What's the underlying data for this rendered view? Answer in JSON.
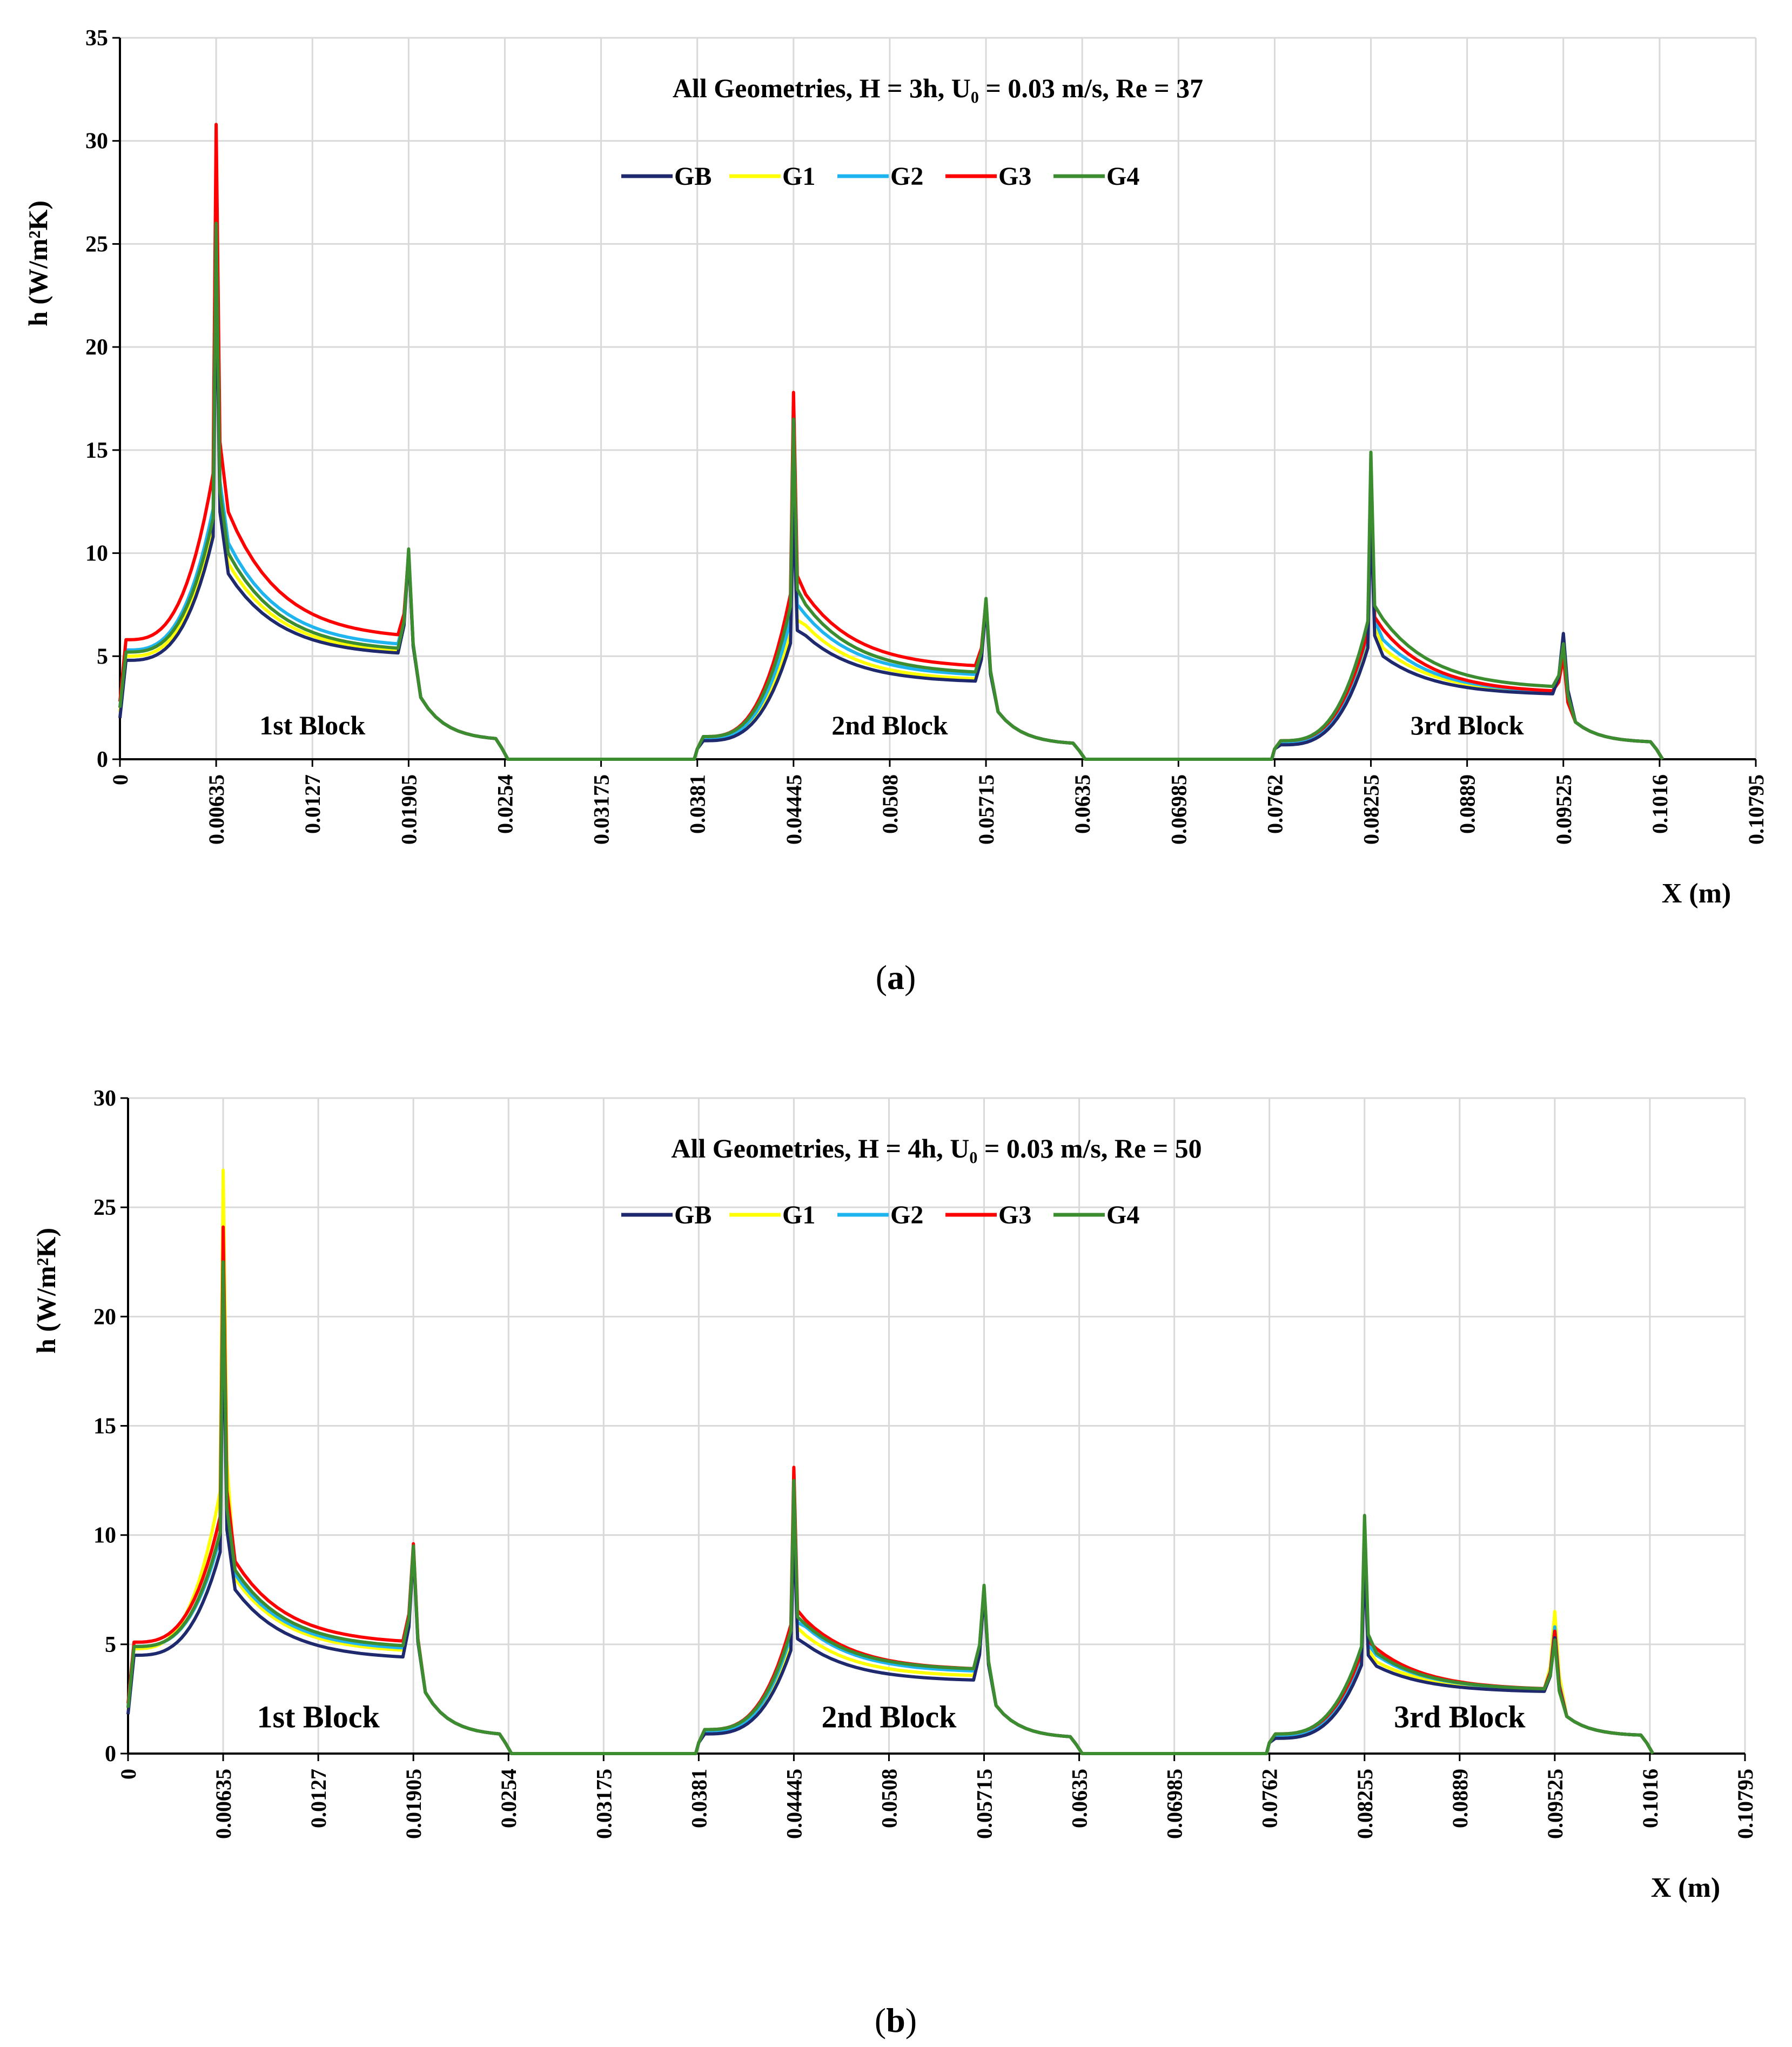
{
  "figure": {
    "panel_a_caption": "a",
    "panel_b_caption": "b"
  },
  "colors": {
    "GB": "#1f2a6e",
    "G1": "#ffff00",
    "G2": "#1eb4f0",
    "G3": "#ff0000",
    "G4": "#3c8c30",
    "grid": "#d9d9d9",
    "axis": "#000000"
  },
  "chart_data": [
    {
      "type": "line",
      "panel": "a",
      "title": "All Geometries, H = 3h, U₀ = 0.03 m/s, Re = 37",
      "xlabel": "X (m)",
      "ylabel": "h (W/m²K)",
      "xlim": [
        0,
        0.10795
      ],
      "ylim": [
        0,
        35
      ],
      "yticks": [
        "0",
        "5",
        "10",
        "15",
        "20",
        "25",
        "30",
        "35"
      ],
      "xticks": [
        "0",
        "0.00635",
        "0.0127",
        "0.01905",
        "0.0254",
        "0.03175",
        "0.0381",
        "0.04445",
        "0.0508",
        "0.05715",
        "0.0635",
        "0.06985",
        "0.0762",
        "0.08255",
        "0.0889",
        "0.09525",
        "0.1016",
        "0.10795"
      ],
      "legend": "top-center",
      "annotations": [
        {
          "text": "1st Block",
          "x": 0.0127,
          "y": 1.2
        },
        {
          "text": "2nd Block",
          "x": 0.0508,
          "y": 1.2
        },
        {
          "text": "3rd Block",
          "x": 0.0889,
          "y": 1.2
        }
      ],
      "blocks": [
        {
          "start": 0.0,
          "peak1": 0.00635,
          "peak2": 0.01905,
          "end": 0.0254
        },
        {
          "start": 0.0381,
          "peak1": 0.04445,
          "peak2": 0.05715,
          "end": 0.0635
        },
        {
          "start": 0.0762,
          "peak1": 0.08255,
          "peak2": 0.09525,
          "end": 0.1016
        }
      ],
      "series": [
        {
          "name": "GB",
          "blocks": [
            {
              "base": 2.0,
              "pre": 4.8,
              "peak1": 24.0,
              "post": 9.0,
              "trough": 5.0,
              "peak2": 10.0,
              "after": 3.0,
              "tail": 0.9
            },
            {
              "base": 0.5,
              "pre": 0.9,
              "peak1": 12.5,
              "post": 6.0,
              "trough": 3.7,
              "peak2": 7.5,
              "after": 2.3,
              "tail": 0.7
            },
            {
              "base": 0.5,
              "pre": 0.7,
              "peak1": 12.0,
              "post": 5.0,
              "trough": 3.1,
              "peak2": 6.1,
              "after": 1.8,
              "tail": 0.8
            }
          ]
        },
        {
          "name": "G1",
          "blocks": [
            {
              "base": 2.3,
              "pre": 5.0,
              "peak1": 25.0,
              "post": 9.5,
              "trough": 5.1,
              "peak2": 10.0,
              "after": 3.0,
              "tail": 0.9
            },
            {
              "base": 0.5,
              "pre": 1.0,
              "peak1": 13.5,
              "post": 6.5,
              "trough": 3.8,
              "peak2": 7.6,
              "after": 2.3,
              "tail": 0.7
            },
            {
              "base": 0.5,
              "pre": 0.8,
              "peak1": 13.0,
              "post": 5.4,
              "trough": 3.2,
              "peak2": 5.8,
              "after": 1.8,
              "tail": 0.8
            }
          ]
        },
        {
          "name": "G2",
          "blocks": [
            {
              "base": 2.5,
              "pre": 5.3,
              "peak1": 27.0,
              "post": 10.5,
              "trough": 5.4,
              "peak2": 10.0,
              "after": 3.0,
              "tail": 0.9
            },
            {
              "base": 0.5,
              "pre": 1.0,
              "peak1": 15.0,
              "post": 7.0,
              "trough": 4.0,
              "peak2": 7.6,
              "after": 2.3,
              "tail": 0.7
            },
            {
              "base": 0.5,
              "pre": 0.8,
              "peak1": 13.5,
              "post": 5.8,
              "trough": 3.2,
              "peak2": 5.9,
              "after": 1.8,
              "tail": 0.8
            }
          ]
        },
        {
          "name": "G3",
          "blocks": [
            {
              "base": 2.8,
              "pre": 5.8,
              "peak1": 30.8,
              "post": 12.0,
              "trough": 5.8,
              "peak2": 10.0,
              "after": 3.0,
              "tail": 0.9
            },
            {
              "base": 0.5,
              "pre": 1.1,
              "peak1": 17.8,
              "post": 8.0,
              "trough": 4.4,
              "peak2": 7.7,
              "after": 2.3,
              "tail": 0.7
            },
            {
              "base": 0.5,
              "pre": 0.9,
              "peak1": 13.8,
              "post": 6.3,
              "trough": 3.2,
              "peak2": 5.0,
              "after": 1.8,
              "tail": 0.8
            }
          ]
        },
        {
          "name": "G4",
          "blocks": [
            {
              "base": 2.5,
              "pre": 5.2,
              "peak1": 26.0,
              "post": 10.0,
              "trough": 5.2,
              "peak2": 10.2,
              "after": 3.0,
              "tail": 0.9
            },
            {
              "base": 0.5,
              "pre": 1.1,
              "peak1": 16.5,
              "post": 7.5,
              "trough": 4.1,
              "peak2": 7.8,
              "after": 2.3,
              "tail": 0.7
            },
            {
              "base": 0.5,
              "pre": 0.9,
              "peak1": 14.9,
              "post": 6.8,
              "trough": 3.4,
              "peak2": 5.6,
              "after": 1.8,
              "tail": 0.8
            }
          ]
        }
      ]
    },
    {
      "type": "line",
      "panel": "b",
      "title": "All Geometries, H = 4h, U₀ = 0.03 m/s, Re = 50",
      "xlabel": "X (m)",
      "ylabel": "h (W/m²K)",
      "xlim": [
        0,
        0.10795
      ],
      "ylim": [
        0,
        30
      ],
      "yticks": [
        "0",
        "5",
        "10",
        "15",
        "20",
        "25",
        "30"
      ],
      "xticks": [
        "0",
        "0.00635",
        "0.0127",
        "0.01905",
        "0.0254",
        "0.03175",
        "0.0381",
        "0.04445",
        "0.0508",
        "0.05715",
        "0.0635",
        "0.06985",
        "0.0762",
        "0.08255",
        "0.0889",
        "0.09525",
        "0.1016",
        "0.10795"
      ],
      "legend": "top-center",
      "annotations": [
        {
          "text": "1st Block",
          "x": 0.0127,
          "y": 1.2
        },
        {
          "text": "2nd Block",
          "x": 0.0508,
          "y": 1.2
        },
        {
          "text": "3rd Block",
          "x": 0.0889,
          "y": 1.2
        }
      ],
      "blocks": [
        {
          "start": 0.0,
          "peak1": 0.00635,
          "peak2": 0.01905,
          "end": 0.0254
        },
        {
          "start": 0.0381,
          "peak1": 0.04445,
          "peak2": 0.05715,
          "end": 0.0635
        },
        {
          "start": 0.0762,
          "peak1": 0.08255,
          "peak2": 0.09525,
          "end": 0.1016
        }
      ],
      "series": [
        {
          "name": "GB",
          "blocks": [
            {
              "base": 1.8,
              "pre": 4.5,
              "peak1": 20.5,
              "post": 7.5,
              "trough": 4.3,
              "peak2": 9.3,
              "after": 2.8,
              "tail": 0.8
            },
            {
              "base": 0.5,
              "pre": 0.9,
              "peak1": 10.5,
              "post": 5.0,
              "trough": 3.3,
              "peak2": 7.4,
              "after": 2.2,
              "tail": 0.7
            },
            {
              "base": 0.5,
              "pre": 0.7,
              "peak1": 9.0,
              "post": 4.0,
              "trough": 2.8,
              "peak2": 5.3,
              "after": 1.7,
              "tail": 0.8
            }
          ]
        },
        {
          "name": "G1",
          "blocks": [
            {
              "base": 2.0,
              "pre": 4.8,
              "peak1": 26.7,
              "post": 8.0,
              "trough": 4.6,
              "peak2": 9.4,
              "after": 2.8,
              "tail": 0.8
            },
            {
              "base": 0.5,
              "pre": 1.0,
              "peak1": 11.5,
              "post": 5.4,
              "trough": 3.5,
              "peak2": 7.5,
              "after": 2.2,
              "tail": 0.7
            },
            {
              "base": 0.5,
              "pre": 0.8,
              "peak1": 9.5,
              "post": 4.2,
              "trough": 2.9,
              "peak2": 6.5,
              "after": 1.7,
              "tail": 0.8
            }
          ]
        },
        {
          "name": "G2",
          "blocks": [
            {
              "base": 2.1,
              "pre": 4.9,
              "peak1": 22.0,
              "post": 8.2,
              "trough": 4.7,
              "peak2": 9.4,
              "after": 2.8,
              "tail": 0.8
            },
            {
              "base": 0.5,
              "pre": 1.0,
              "peak1": 12.0,
              "post": 5.8,
              "trough": 3.7,
              "peak2": 7.5,
              "after": 2.2,
              "tail": 0.7
            },
            {
              "base": 0.5,
              "pre": 0.8,
              "peak1": 10.0,
              "post": 4.5,
              "trough": 2.9,
              "peak2": 5.8,
              "after": 1.7,
              "tail": 0.8
            }
          ]
        },
        {
          "name": "G3",
          "blocks": [
            {
              "base": 2.3,
              "pre": 5.1,
              "peak1": 24.1,
              "post": 8.8,
              "trough": 5.0,
              "peak2": 9.6,
              "after": 2.8,
              "tail": 0.8
            },
            {
              "base": 0.5,
              "pre": 1.1,
              "peak1": 13.1,
              "post": 6.1,
              "trough": 3.8,
              "peak2": 7.6,
              "after": 2.2,
              "tail": 0.7
            },
            {
              "base": 0.5,
              "pre": 0.9,
              "peak1": 10.3,
              "post": 4.8,
              "trough": 2.9,
              "peak2": 5.6,
              "after": 1.7,
              "tail": 0.8
            }
          ]
        },
        {
          "name": "G4",
          "blocks": [
            {
              "base": 2.1,
              "pre": 4.9,
              "peak1": 22.5,
              "post": 8.4,
              "trough": 4.8,
              "peak2": 9.5,
              "after": 2.8,
              "tail": 0.8
            },
            {
              "base": 0.5,
              "pre": 1.1,
              "peak1": 12.5,
              "post": 5.9,
              "trough": 3.8,
              "peak2": 7.7,
              "after": 2.2,
              "tail": 0.7
            },
            {
              "base": 0.5,
              "pre": 0.9,
              "peak1": 10.9,
              "post": 4.6,
              "trough": 2.9,
              "peak2": 5.2,
              "after": 1.7,
              "tail": 0.8
            }
          ]
        }
      ]
    }
  ]
}
